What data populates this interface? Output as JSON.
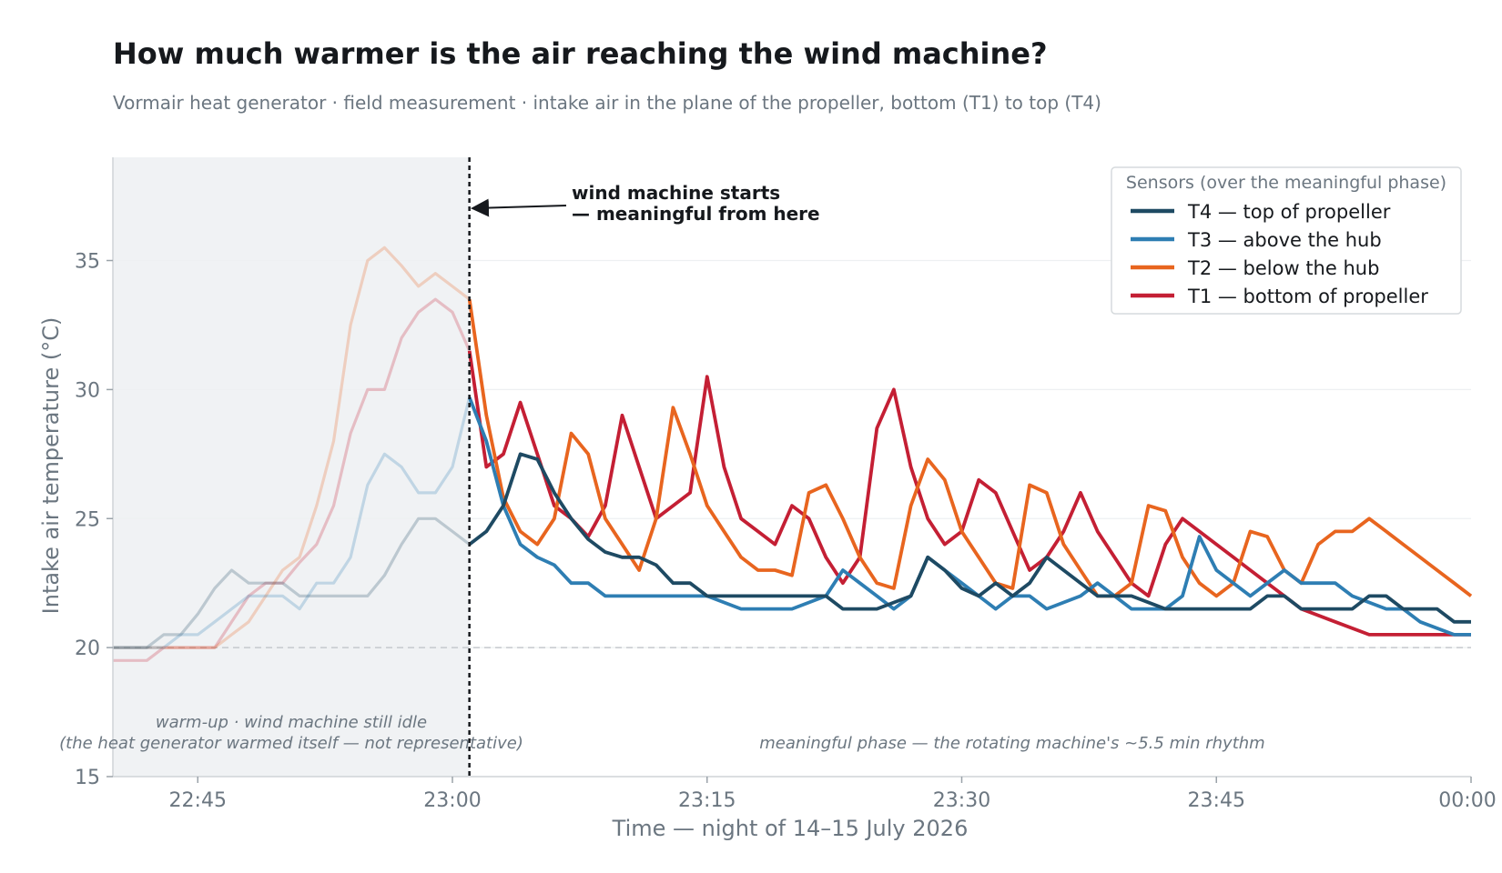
{
  "title": "How much warmer is the air reaching the wind machine?",
  "subtitle": "Vormair heat generator · field measurement · intake air in the plane of the propeller, bottom (T1) to top (T4)",
  "chart_data": {
    "type": "line",
    "xlabel": "Time — night of 14–15 July 2026",
    "ylabel": "Intake air temperature (°C)",
    "xlim": [
      "22:40",
      "00:00"
    ],
    "ylim": [
      15,
      39
    ],
    "x_ticks": [
      "22:45",
      "23:00",
      "23:15",
      "23:30",
      "23:45",
      "00:00"
    ],
    "y_ticks": [
      15,
      20,
      25,
      30,
      35
    ],
    "grid": "horizontal",
    "reference_line": 20,
    "legend_title": "Sensors (over the meaningful phase)",
    "legend_position": "top-right",
    "warmup_shading": {
      "start": "22:40",
      "end": "23:01"
    },
    "annotations": {
      "start_marker_time": "23:01",
      "start_label_line1": "wind machine starts",
      "start_label_line2": "— meaningful from here",
      "warmup_line1": "warm-up · wind machine still idle",
      "warmup_line2": "(the heat generator warmed itself — not representative)",
      "meaningful": "meaningful phase — the rotating machine's ~5.5 min rhythm"
    },
    "series": [
      {
        "name": "T4 — top of propeller",
        "color": "#1e4a63",
        "points": [
          [
            "22:40",
            20.0
          ],
          [
            "22:42",
            20.0
          ],
          [
            "22:43",
            20.5
          ],
          [
            "22:44",
            20.5
          ],
          [
            "22:45",
            21.3
          ],
          [
            "22:46",
            22.3
          ],
          [
            "22:47",
            23.0
          ],
          [
            "22:48",
            22.5
          ],
          [
            "22:50",
            22.5
          ],
          [
            "22:51",
            22.0
          ],
          [
            "22:53",
            22.0
          ],
          [
            "22:55",
            22.0
          ],
          [
            "22:56",
            22.8
          ],
          [
            "22:57",
            24.0
          ],
          [
            "22:58",
            25.0
          ],
          [
            "22:59",
            25.0
          ],
          [
            "23:00",
            24.5
          ],
          [
            "23:01",
            24.0
          ],
          [
            "23:02",
            24.5
          ],
          [
            "23:03",
            25.5
          ],
          [
            "23:04",
            27.5
          ],
          [
            "23:05",
            27.3
          ],
          [
            "23:06",
            26.0
          ],
          [
            "23:07",
            25.0
          ],
          [
            "23:08",
            24.2
          ],
          [
            "23:09",
            23.7
          ],
          [
            "23:10",
            23.5
          ],
          [
            "23:11",
            23.5
          ],
          [
            "23:12",
            23.2
          ],
          [
            "23:13",
            22.5
          ],
          [
            "23:14",
            22.5
          ],
          [
            "23:15",
            22.0
          ],
          [
            "23:17",
            22.0
          ],
          [
            "23:20",
            22.0
          ],
          [
            "23:22",
            22.0
          ],
          [
            "23:23",
            21.5
          ],
          [
            "23:25",
            21.5
          ],
          [
            "23:27",
            22.0
          ],
          [
            "23:28",
            23.5
          ],
          [
            "23:29",
            23.0
          ],
          [
            "23:30",
            22.3
          ],
          [
            "23:31",
            22.0
          ],
          [
            "23:32",
            22.5
          ],
          [
            "23:33",
            22.0
          ],
          [
            "23:34",
            22.5
          ],
          [
            "23:35",
            23.5
          ],
          [
            "23:36",
            23.0
          ],
          [
            "23:37",
            22.5
          ],
          [
            "23:38",
            22.0
          ],
          [
            "23:40",
            22.0
          ],
          [
            "23:42",
            21.5
          ],
          [
            "23:45",
            21.5
          ],
          [
            "23:47",
            21.5
          ],
          [
            "23:48",
            22.0
          ],
          [
            "23:49",
            22.0
          ],
          [
            "23:50",
            21.5
          ],
          [
            "23:53",
            21.5
          ],
          [
            "23:54",
            22.0
          ],
          [
            "23:55",
            22.0
          ],
          [
            "23:56",
            21.5
          ],
          [
            "23:58",
            21.5
          ],
          [
            "23:59",
            21.0
          ],
          [
            "00:00",
            21.0
          ]
        ]
      },
      {
        "name": "T3 — above the hub",
        "color": "#2e7eb3",
        "points": [
          [
            "22:40",
            20.0
          ],
          [
            "22:43",
            20.0
          ],
          [
            "22:44",
            20.5
          ],
          [
            "22:45",
            20.5
          ],
          [
            "22:46",
            21.0
          ],
          [
            "22:47",
            21.5
          ],
          [
            "22:48",
            22.0
          ],
          [
            "22:50",
            22.0
          ],
          [
            "22:51",
            21.5
          ],
          [
            "22:52",
            22.5
          ],
          [
            "22:53",
            22.5
          ],
          [
            "22:54",
            23.5
          ],
          [
            "22:55",
            26.3
          ],
          [
            "22:56",
            27.5
          ],
          [
            "22:57",
            27.0
          ],
          [
            "22:58",
            26.0
          ],
          [
            "22:59",
            26.0
          ],
          [
            "23:00",
            27.0
          ],
          [
            "23:01",
            29.7
          ],
          [
            "23:02",
            28.0
          ],
          [
            "23:03",
            25.5
          ],
          [
            "23:04",
            24.0
          ],
          [
            "23:05",
            23.5
          ],
          [
            "23:06",
            23.2
          ],
          [
            "23:07",
            22.5
          ],
          [
            "23:08",
            22.5
          ],
          [
            "23:09",
            22.0
          ],
          [
            "23:12",
            22.0
          ],
          [
            "23:15",
            22.0
          ],
          [
            "23:17",
            21.5
          ],
          [
            "23:20",
            21.5
          ],
          [
            "23:22",
            22.0
          ],
          [
            "23:23",
            23.0
          ],
          [
            "23:24",
            22.5
          ],
          [
            "23:25",
            22.0
          ],
          [
            "23:26",
            21.5
          ],
          [
            "23:27",
            22.0
          ],
          [
            "23:28",
            23.5
          ],
          [
            "23:29",
            23.0
          ],
          [
            "23:30",
            22.5
          ],
          [
            "23:31",
            22.0
          ],
          [
            "23:32",
            21.5
          ],
          [
            "23:33",
            22.0
          ],
          [
            "23:34",
            22.0
          ],
          [
            "23:35",
            21.5
          ],
          [
            "23:37",
            22.0
          ],
          [
            "23:38",
            22.5
          ],
          [
            "23:39",
            22.0
          ],
          [
            "23:40",
            21.5
          ],
          [
            "23:42",
            21.5
          ],
          [
            "23:43",
            22.0
          ],
          [
            "23:44",
            24.3
          ],
          [
            "23:45",
            23.0
          ],
          [
            "23:46",
            22.5
          ],
          [
            "23:47",
            22.0
          ],
          [
            "23:48",
            22.5
          ],
          [
            "23:49",
            23.0
          ],
          [
            "23:50",
            22.5
          ],
          [
            "23:52",
            22.5
          ],
          [
            "23:53",
            22.0
          ],
          [
            "23:55",
            21.5
          ],
          [
            "23:56",
            21.5
          ],
          [
            "23:57",
            21.0
          ],
          [
            "23:59",
            20.5
          ],
          [
            "00:00",
            20.5
          ]
        ]
      },
      {
        "name": "T2 — below the hub",
        "color": "#e8651f",
        "points": [
          [
            "22:40",
            20.0
          ],
          [
            "22:43",
            20.0
          ],
          [
            "22:45",
            20.0
          ],
          [
            "22:46",
            20.0
          ],
          [
            "22:47",
            20.5
          ],
          [
            "22:48",
            21.0
          ],
          [
            "22:49",
            22.0
          ],
          [
            "22:50",
            23.0
          ],
          [
            "22:51",
            23.5
          ],
          [
            "22:52",
            25.5
          ],
          [
            "22:53",
            28.0
          ],
          [
            "22:54",
            32.5
          ],
          [
            "22:55",
            35.0
          ],
          [
            "22:56",
            35.5
          ],
          [
            "22:57",
            34.8
          ],
          [
            "22:58",
            34.0
          ],
          [
            "22:59",
            34.5
          ],
          [
            "23:00",
            34.0
          ],
          [
            "23:01",
            33.5
          ],
          [
            "23:02",
            29.0
          ],
          [
            "23:03",
            25.8
          ],
          [
            "23:04",
            24.5
          ],
          [
            "23:05",
            24.0
          ],
          [
            "23:06",
            25.0
          ],
          [
            "23:07",
            28.3
          ],
          [
            "23:08",
            27.5
          ],
          [
            "23:09",
            25.0
          ],
          [
            "23:10",
            24.0
          ],
          [
            "23:11",
            23.0
          ],
          [
            "23:12",
            25.0
          ],
          [
            "23:13",
            29.3
          ],
          [
            "23:14",
            27.5
          ],
          [
            "23:15",
            25.5
          ],
          [
            "23:16",
            24.5
          ],
          [
            "23:17",
            23.5
          ],
          [
            "23:18",
            23.0
          ],
          [
            "23:19",
            23.0
          ],
          [
            "23:20",
            22.8
          ],
          [
            "23:21",
            26.0
          ],
          [
            "23:22",
            26.3
          ],
          [
            "23:23",
            25.0
          ],
          [
            "23:24",
            23.5
          ],
          [
            "23:25",
            22.5
          ],
          [
            "23:26",
            22.3
          ],
          [
            "23:27",
            25.5
          ],
          [
            "23:28",
            27.3
          ],
          [
            "23:29",
            26.5
          ],
          [
            "23:30",
            24.5
          ],
          [
            "23:31",
            23.5
          ],
          [
            "23:32",
            22.5
          ],
          [
            "23:33",
            22.3
          ],
          [
            "23:34",
            26.3
          ],
          [
            "23:35",
            26.0
          ],
          [
            "23:36",
            24.0
          ],
          [
            "23:37",
            23.0
          ],
          [
            "23:38",
            22.0
          ],
          [
            "23:39",
            22.0
          ],
          [
            "23:40",
            22.5
          ],
          [
            "23:41",
            25.5
          ],
          [
            "23:42",
            25.3
          ],
          [
            "23:43",
            23.5
          ],
          [
            "23:44",
            22.5
          ],
          [
            "23:45",
            22.0
          ],
          [
            "23:46",
            22.5
          ],
          [
            "23:47",
            24.5
          ],
          [
            "23:48",
            24.3
          ],
          [
            "23:49",
            23.0
          ],
          [
            "23:50",
            22.5
          ],
          [
            "23:51",
            24.0
          ],
          [
            "23:52",
            24.5
          ],
          [
            "23:53",
            24.5
          ],
          [
            "23:54",
            25.0
          ],
          [
            "23:55",
            24.5
          ],
          [
            "23:56",
            24.0
          ],
          [
            "23:57",
            23.5
          ],
          [
            "23:58",
            23.0
          ],
          [
            "23:59",
            22.5
          ],
          [
            "00:00",
            22.0
          ]
        ]
      },
      {
        "name": "T1 — bottom of propeller",
        "color": "#c41f34",
        "points": [
          [
            "22:40",
            19.5
          ],
          [
            "22:42",
            19.5
          ],
          [
            "22:43",
            20.0
          ],
          [
            "22:45",
            20.0
          ],
          [
            "22:46",
            20.0
          ],
          [
            "22:47",
            21.0
          ],
          [
            "22:48",
            22.0
          ],
          [
            "22:49",
            22.5
          ],
          [
            "22:50",
            22.5
          ],
          [
            "22:51",
            23.3
          ],
          [
            "22:52",
            24.0
          ],
          [
            "22:53",
            25.5
          ],
          [
            "22:54",
            28.3
          ],
          [
            "22:55",
            30.0
          ],
          [
            "22:56",
            30.0
          ],
          [
            "22:57",
            32.0
          ],
          [
            "22:58",
            33.0
          ],
          [
            "22:59",
            33.5
          ],
          [
            "23:00",
            33.0
          ],
          [
            "23:01",
            31.5
          ],
          [
            "23:02",
            27.0
          ],
          [
            "23:03",
            27.5
          ],
          [
            "23:04",
            29.5
          ],
          [
            "23:05",
            27.5
          ],
          [
            "23:06",
            25.5
          ],
          [
            "23:07",
            25.0
          ],
          [
            "23:08",
            24.3
          ],
          [
            "23:09",
            25.5
          ],
          [
            "23:10",
            29.0
          ],
          [
            "23:11",
            27.0
          ],
          [
            "23:12",
            25.0
          ],
          [
            "23:13",
            25.5
          ],
          [
            "23:14",
            26.0
          ],
          [
            "23:15",
            30.5
          ],
          [
            "23:16",
            27.0
          ],
          [
            "23:17",
            25.0
          ],
          [
            "23:18",
            24.5
          ],
          [
            "23:19",
            24.0
          ],
          [
            "23:20",
            25.5
          ],
          [
            "23:21",
            25.0
          ],
          [
            "23:22",
            23.5
          ],
          [
            "23:23",
            22.5
          ],
          [
            "23:24",
            23.5
          ],
          [
            "23:25",
            28.5
          ],
          [
            "23:26",
            30.0
          ],
          [
            "23:27",
            27.0
          ],
          [
            "23:28",
            25.0
          ],
          [
            "23:29",
            24.0
          ],
          [
            "23:30",
            24.5
          ],
          [
            "23:31",
            26.5
          ],
          [
            "23:32",
            26.0
          ],
          [
            "23:33",
            24.5
          ],
          [
            "23:34",
            23.0
          ],
          [
            "23:35",
            23.5
          ],
          [
            "23:36",
            24.5
          ],
          [
            "23:37",
            26.0
          ],
          [
            "23:38",
            24.5
          ],
          [
            "23:39",
            23.5
          ],
          [
            "23:40",
            22.5
          ],
          [
            "23:41",
            22.0
          ],
          [
            "23:42",
            24.0
          ],
          [
            "23:43",
            25.0
          ],
          [
            "23:44",
            24.5
          ],
          [
            "23:45",
            24.0
          ],
          [
            "23:46",
            23.5
          ],
          [
            "23:47",
            23.0
          ],
          [
            "23:48",
            22.5
          ],
          [
            "23:49",
            22.0
          ],
          [
            "23:50",
            21.5
          ],
          [
            "23:52",
            21.0
          ],
          [
            "23:54",
            20.5
          ],
          [
            "23:56",
            20.5
          ],
          [
            "23:58",
            20.5
          ],
          [
            "00:00",
            20.5
          ]
        ]
      }
    ]
  }
}
